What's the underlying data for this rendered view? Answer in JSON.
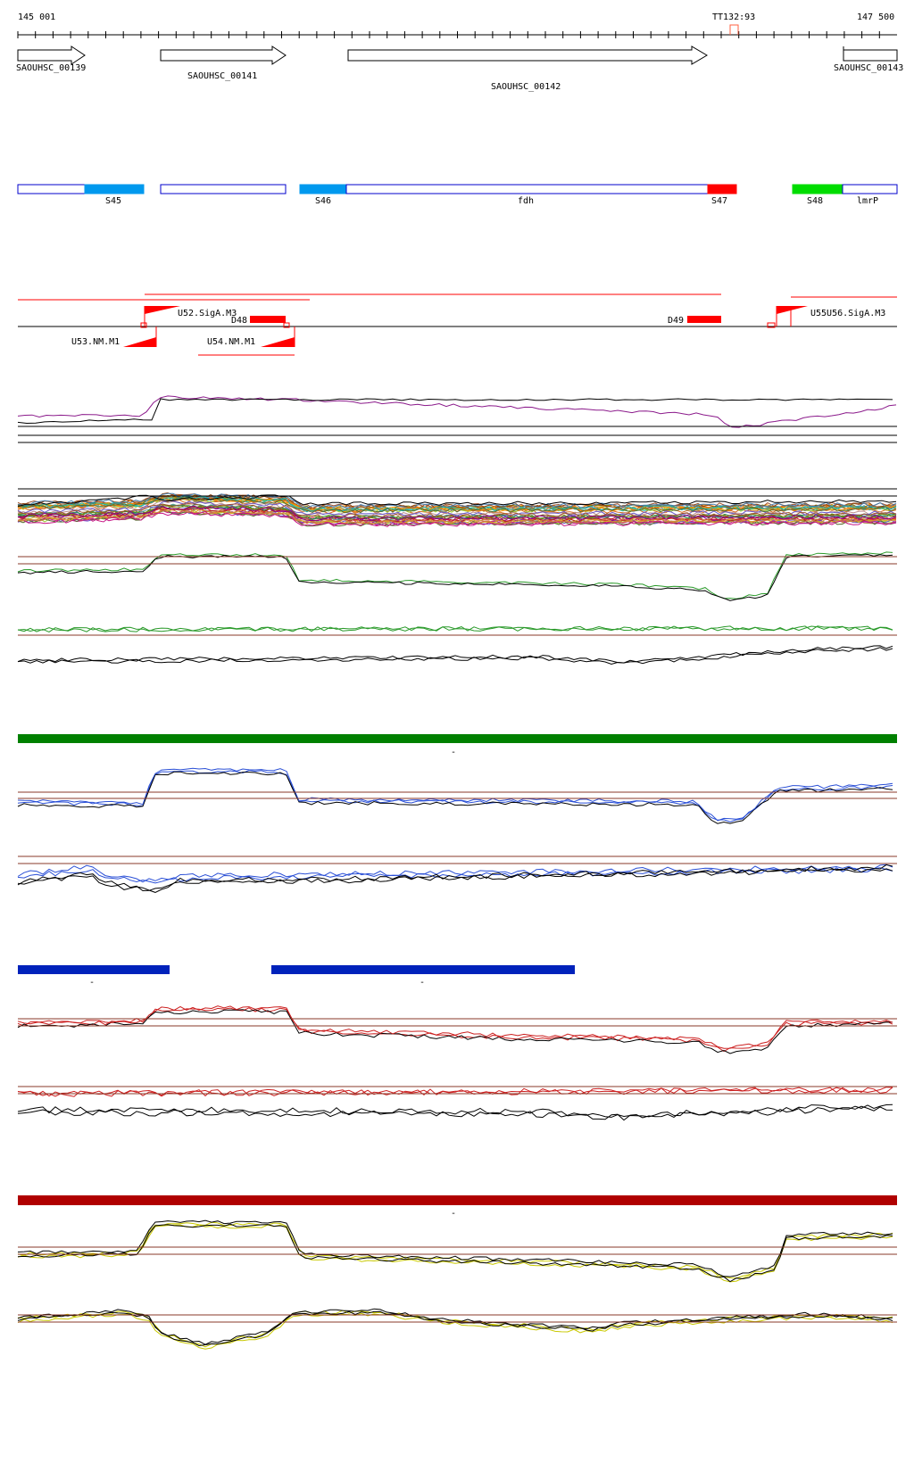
{
  "coords": {
    "start_label": "145 001",
    "end_label": "147 500",
    "terminator_label": "TT132:93"
  },
  "genes": [
    {
      "name": "SAOUHSC_00139",
      "strand": "+"
    },
    {
      "name": "SAOUHSC_00141",
      "strand": "+"
    },
    {
      "name": "SAOUHSC_00142",
      "strand": "+"
    },
    {
      "name": "SAOUHSC_00143",
      "strand": "+"
    }
  ],
  "segments": [
    {
      "label": "S45"
    },
    {
      "label": "S46"
    },
    {
      "label": "fdh"
    },
    {
      "label": "S47"
    },
    {
      "label": "S48"
    },
    {
      "label": "lmrP"
    }
  ],
  "transcription_units": [
    {
      "label": "U52.SigA.M3"
    },
    {
      "label": "U53.NM.M1"
    },
    {
      "label": "U54.NM.M1"
    },
    {
      "label": "U55U56.SigA.M3"
    },
    {
      "label": "D48"
    },
    {
      "label": "D49"
    }
  ],
  "condition_bars": [
    {
      "color": "#008000",
      "label": "-"
    },
    {
      "color": "#0022bb",
      "label": "-"
    },
    {
      "color": "#0022bb",
      "label": "-"
    },
    {
      "color": "#b00000",
      "label": "-"
    }
  ],
  "colors": {
    "accent_red": "#ff0000",
    "segment_light_blue": "#0099ee",
    "segment_green": "#00dd00",
    "outline_blue": "#0000cc",
    "track_green": "#2a9a2a",
    "track_blue": "#2a4fd6",
    "track_red": "#cc2020",
    "track_yellow": "#c8c800",
    "threshold_brown": "#8a3a2a"
  }
}
